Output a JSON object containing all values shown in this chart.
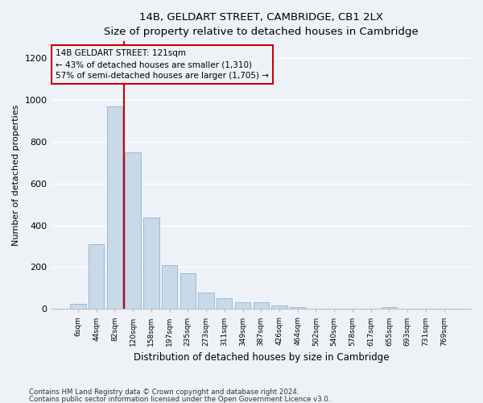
{
  "title": "14B, GELDART STREET, CAMBRIDGE, CB1 2LX",
  "subtitle": "Size of property relative to detached houses in Cambridge",
  "xlabel": "Distribution of detached houses by size in Cambridge",
  "ylabel": "Number of detached properties",
  "bar_color": "#c8d9ea",
  "bar_edge_color": "#8ab4d0",
  "annotation_line_color": "#cc0000",
  "annotation_box_edge_color": "#cc0000",
  "annotation_line1": "14B GELDART STREET: 121sqm",
  "annotation_line2": "← 43% of detached houses are smaller (1,310)",
  "annotation_line3": "57% of semi-detached houses are larger (1,705) →",
  "footer1": "Contains HM Land Registry data © Crown copyright and database right 2024.",
  "footer2": "Contains public sector information licensed under the Open Government Licence v3.0.",
  "categories": [
    "6sqm",
    "44sqm",
    "82sqm",
    "120sqm",
    "158sqm",
    "197sqm",
    "235sqm",
    "273sqm",
    "311sqm",
    "349sqm",
    "387sqm",
    "426sqm",
    "464sqm",
    "502sqm",
    "540sqm",
    "578sqm",
    "617sqm",
    "655sqm",
    "693sqm",
    "731sqm",
    "769sqm"
  ],
  "values": [
    25,
    310,
    970,
    750,
    435,
    210,
    170,
    80,
    50,
    30,
    30,
    15,
    10,
    0,
    0,
    0,
    0,
    10,
    0,
    0,
    0
  ],
  "ylim": [
    0,
    1280
  ],
  "yticks": [
    0,
    200,
    400,
    600,
    800,
    1000,
    1200
  ],
  "property_bar_index": 3,
  "background_color": "#eef2f7",
  "grid_color": "#ffffff"
}
